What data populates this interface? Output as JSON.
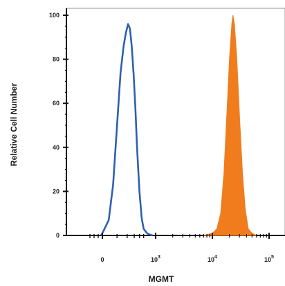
{
  "chart_data": {
    "type": "area",
    "xlabel": "MGMT",
    "ylabel": "Relative Cell Number",
    "ylim": [
      0,
      100
    ],
    "y_ticks": [
      "0",
      "20",
      "40",
      "60",
      "80",
      "100"
    ],
    "x_ticks": [
      {
        "value": 0,
        "label": "0"
      },
      {
        "value": 1000,
        "label": "10",
        "exp": "3"
      },
      {
        "value": 10000,
        "label": "10",
        "exp": "4"
      },
      {
        "value": 100000,
        "label": "10",
        "exp": "5"
      }
    ],
    "x_scale": "biexponential",
    "grid": false,
    "series": [
      {
        "style": "line",
        "color": "#2f5fb0",
        "points": [
          [
            -30,
            0
          ],
          [
            0,
            1
          ],
          [
            40,
            7
          ],
          [
            70,
            23
          ],
          [
            100,
            50
          ],
          [
            130,
            74
          ],
          [
            160,
            86
          ],
          [
            185,
            92
          ],
          [
            210,
            96
          ],
          [
            235,
            94
          ],
          [
            260,
            86
          ],
          [
            290,
            73
          ],
          [
            320,
            58
          ],
          [
            350,
            40
          ],
          [
            400,
            20
          ],
          [
            450,
            8
          ],
          [
            500,
            3
          ],
          [
            600,
            1
          ],
          [
            700,
            0.3
          ],
          [
            800,
            0
          ]
        ]
      },
      {
        "style": "filled",
        "color": "#f07c1e",
        "points": [
          [
            7000,
            0
          ],
          [
            10000,
            1
          ],
          [
            12000,
            3
          ],
          [
            14000,
            10
          ],
          [
            16000,
            28
          ],
          [
            18000,
            55
          ],
          [
            20000,
            80
          ],
          [
            22000,
            96
          ],
          [
            23000,
            100
          ],
          [
            24500,
            96
          ],
          [
            27000,
            80
          ],
          [
            30000,
            55
          ],
          [
            34000,
            28
          ],
          [
            38000,
            12
          ],
          [
            43000,
            3
          ],
          [
            50000,
            1
          ],
          [
            60000,
            0
          ]
        ]
      }
    ]
  }
}
